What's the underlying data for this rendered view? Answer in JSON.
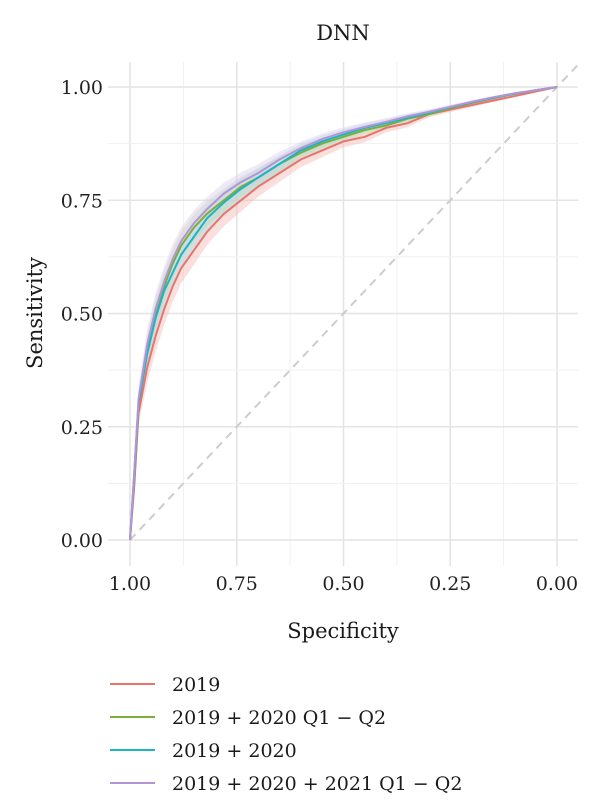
{
  "chart_data": {
    "type": "line",
    "title": "DNN",
    "xlabel": "Specificity",
    "ylabel": "Sensitivity",
    "xlim": [
      1.0,
      0.0
    ],
    "ylim": [
      0.0,
      1.0
    ],
    "x_reversed": true,
    "xticks": [
      1.0,
      0.75,
      0.5,
      0.25,
      0.0
    ],
    "xtick_labels": [
      "1.00",
      "0.75",
      "0.50",
      "0.25",
      "0.00"
    ],
    "yticks": [
      0.0,
      0.25,
      0.5,
      0.75,
      1.0
    ],
    "ytick_labels": [
      "0.00",
      "0.25",
      "0.50",
      "0.75",
      "1.00"
    ],
    "grid": true,
    "legend_position": "bottom",
    "reference_line": {
      "from": [
        1.0,
        0.0
      ],
      "to": [
        0.0,
        1.0
      ],
      "style": "dashed",
      "color": "#cccccc"
    },
    "series": [
      {
        "name": "2019",
        "color": "#e8746c",
        "band_color": "#f4b8b3",
        "points": [
          [
            1.0,
            0.0
          ],
          [
            0.99,
            0.12
          ],
          [
            0.98,
            0.28
          ],
          [
            0.96,
            0.38
          ],
          [
            0.94,
            0.45
          ],
          [
            0.92,
            0.51
          ],
          [
            0.9,
            0.56
          ],
          [
            0.88,
            0.6
          ],
          [
            0.85,
            0.64
          ],
          [
            0.82,
            0.68
          ],
          [
            0.78,
            0.72
          ],
          [
            0.74,
            0.75
          ],
          [
            0.7,
            0.78
          ],
          [
            0.65,
            0.81
          ],
          [
            0.6,
            0.84
          ],
          [
            0.55,
            0.86
          ],
          [
            0.5,
            0.88
          ],
          [
            0.45,
            0.89
          ],
          [
            0.4,
            0.91
          ],
          [
            0.35,
            0.92
          ],
          [
            0.3,
            0.94
          ],
          [
            0.25,
            0.95
          ],
          [
            0.2,
            0.96
          ],
          [
            0.15,
            0.97
          ],
          [
            0.1,
            0.98
          ],
          [
            0.05,
            0.99
          ],
          [
            0.0,
            1.0
          ]
        ]
      },
      {
        "name": "2019 + 2020 Q1 − Q2",
        "color": "#7cae3a",
        "band_color": "#c6dfa6",
        "points": [
          [
            1.0,
            0.0
          ],
          [
            0.99,
            0.15
          ],
          [
            0.98,
            0.3
          ],
          [
            0.96,
            0.42
          ],
          [
            0.94,
            0.5
          ],
          [
            0.92,
            0.56
          ],
          [
            0.9,
            0.61
          ],
          [
            0.88,
            0.65
          ],
          [
            0.85,
            0.69
          ],
          [
            0.82,
            0.72
          ],
          [
            0.78,
            0.75
          ],
          [
            0.74,
            0.78
          ],
          [
            0.7,
            0.8
          ],
          [
            0.65,
            0.83
          ],
          [
            0.6,
            0.855
          ],
          [
            0.55,
            0.875
          ],
          [
            0.5,
            0.89
          ],
          [
            0.45,
            0.905
          ],
          [
            0.4,
            0.915
          ],
          [
            0.35,
            0.93
          ],
          [
            0.3,
            0.94
          ],
          [
            0.25,
            0.953
          ],
          [
            0.2,
            0.965
          ],
          [
            0.15,
            0.975
          ],
          [
            0.1,
            0.985
          ],
          [
            0.05,
            0.993
          ],
          [
            0.0,
            1.0
          ]
        ]
      },
      {
        "name": "2019 + 2020",
        "color": "#1eb4c4",
        "band_color": "#a8dde4",
        "points": [
          [
            1.0,
            0.0
          ],
          [
            0.99,
            0.14
          ],
          [
            0.98,
            0.3
          ],
          [
            0.96,
            0.41
          ],
          [
            0.94,
            0.49
          ],
          [
            0.92,
            0.55
          ],
          [
            0.9,
            0.59
          ],
          [
            0.88,
            0.63
          ],
          [
            0.85,
            0.67
          ],
          [
            0.82,
            0.71
          ],
          [
            0.78,
            0.745
          ],
          [
            0.74,
            0.775
          ],
          [
            0.7,
            0.8
          ],
          [
            0.65,
            0.83
          ],
          [
            0.6,
            0.86
          ],
          [
            0.55,
            0.88
          ],
          [
            0.5,
            0.895
          ],
          [
            0.45,
            0.91
          ],
          [
            0.4,
            0.92
          ],
          [
            0.35,
            0.932
          ],
          [
            0.3,
            0.943
          ],
          [
            0.25,
            0.955
          ],
          [
            0.2,
            0.966
          ],
          [
            0.15,
            0.976
          ],
          [
            0.1,
            0.985
          ],
          [
            0.05,
            0.993
          ],
          [
            0.0,
            1.0
          ]
        ]
      },
      {
        "name": "2019 + 2020 + 2021 Q1 − Q2",
        "color": "#b395d6",
        "band_color": "#dccdee",
        "points": [
          [
            1.0,
            0.0
          ],
          [
            0.99,
            0.15
          ],
          [
            0.98,
            0.31
          ],
          [
            0.96,
            0.43
          ],
          [
            0.94,
            0.51
          ],
          [
            0.92,
            0.57
          ],
          [
            0.9,
            0.62
          ],
          [
            0.88,
            0.66
          ],
          [
            0.85,
            0.7
          ],
          [
            0.82,
            0.73
          ],
          [
            0.78,
            0.765
          ],
          [
            0.74,
            0.79
          ],
          [
            0.7,
            0.81
          ],
          [
            0.65,
            0.84
          ],
          [
            0.6,
            0.865
          ],
          [
            0.55,
            0.885
          ],
          [
            0.5,
            0.9
          ],
          [
            0.45,
            0.912
          ],
          [
            0.4,
            0.923
          ],
          [
            0.35,
            0.935
          ],
          [
            0.3,
            0.945
          ],
          [
            0.25,
            0.956
          ],
          [
            0.2,
            0.967
          ],
          [
            0.15,
            0.977
          ],
          [
            0.1,
            0.986
          ],
          [
            0.05,
            0.993
          ],
          [
            0.0,
            1.0
          ]
        ]
      }
    ]
  }
}
